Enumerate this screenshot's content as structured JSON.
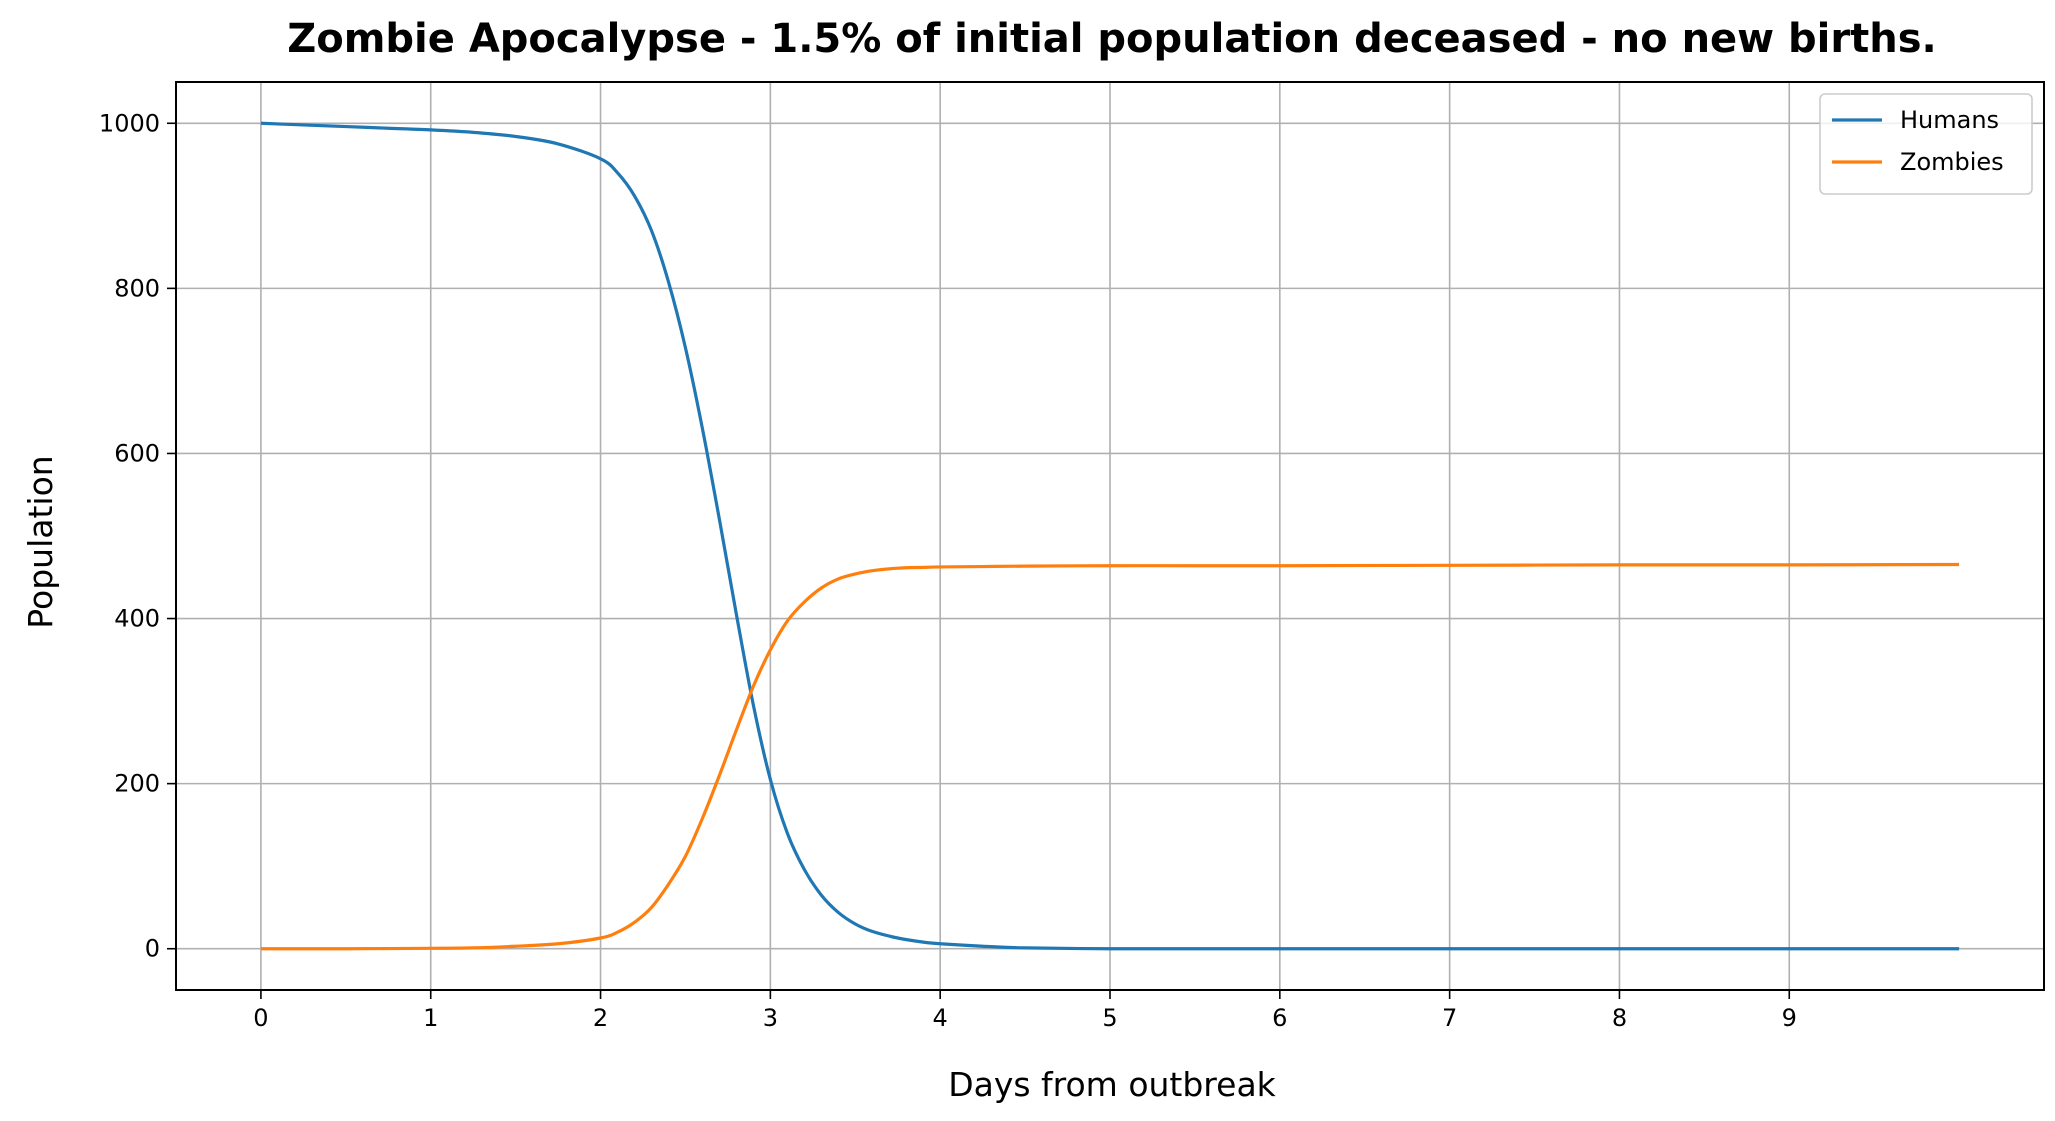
{
  "chart_data": {
    "type": "line",
    "title": "Zombie Apocalypse - 1.5% of initial population deceased - no new births.",
    "xlabel": "Days from outbreak",
    "ylabel": "Population",
    "xlim": [
      -0.5,
      10.5
    ],
    "ylim": [
      -50,
      1050
    ],
    "xticks": [
      0,
      1,
      2,
      3,
      4,
      5,
      6,
      7,
      8,
      9
    ],
    "xtick_labels": [
      "0",
      "1",
      "2",
      "3",
      "4",
      "5",
      "6",
      "7",
      "8",
      "9"
    ],
    "yticks": [
      0,
      200,
      400,
      600,
      800,
      1000
    ],
    "ytick_labels": [
      "0",
      "200",
      "400",
      "600",
      "800",
      "1000"
    ],
    "grid": true,
    "legend_position": "top-right",
    "x": [
      0,
      0.25,
      0.5,
      0.75,
      1.0,
      1.25,
      1.5,
      1.75,
      2.0,
      2.1,
      2.2,
      2.3,
      2.4,
      2.5,
      2.6,
      2.7,
      2.8,
      2.9,
      3.0,
      3.1,
      3.2,
      3.3,
      3.4,
      3.5,
      3.6,
      3.75,
      3.9,
      4.0,
      4.25,
      4.5,
      5.0,
      5.5,
      6.0,
      7.0,
      8.0,
      9.0,
      10.0
    ],
    "series": [
      {
        "name": "Humans",
        "color": "#1f77b4",
        "values": [
          1000,
          998,
          996,
          994,
          992,
          989,
          984,
          975,
          957,
          940,
          912,
          870,
          808,
          728,
          630,
          520,
          405,
          295,
          205,
          140,
          96,
          65,
          44,
          30,
          21,
          13,
          8,
          6,
          3,
          1,
          0,
          0,
          0,
          0,
          0,
          0,
          0
        ]
      },
      {
        "name": "Zombies",
        "color": "#ff7f0e",
        "values": [
          0,
          0,
          0,
          0.2,
          0.5,
          1,
          3,
          6,
          13,
          20,
          32,
          50,
          78,
          112,
          158,
          210,
          265,
          318,
          362,
          397,
          420,
          437,
          448,
          454,
          458,
          461,
          462,
          462.5,
          463,
          463.5,
          464,
          464,
          464,
          464.5,
          465,
          465,
          465.5
        ]
      }
    ]
  }
}
